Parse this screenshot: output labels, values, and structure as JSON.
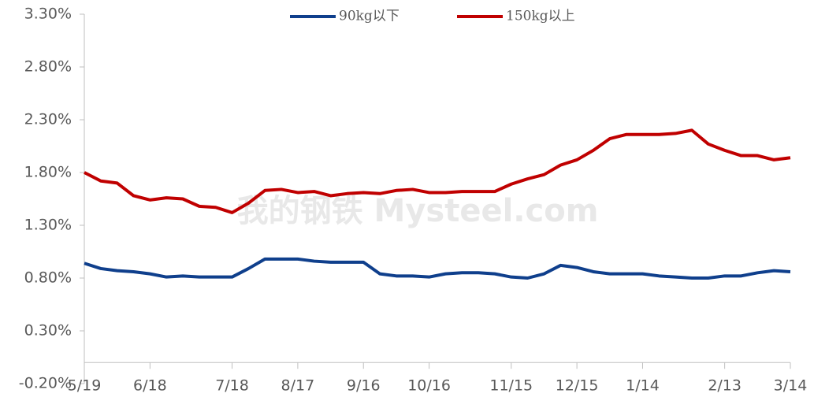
{
  "chart_data": {
    "type": "line",
    "watermark": "我的钢铁 Mysteel.com",
    "categories": [
      "5/19",
      null,
      null,
      null,
      "6/18",
      null,
      null,
      null,
      null,
      "7/18",
      null,
      null,
      null,
      "8/17",
      null,
      null,
      null,
      "9/16",
      null,
      null,
      null,
      "10/16",
      null,
      null,
      null,
      null,
      "11/15",
      null,
      null,
      null,
      "12/15",
      null,
      null,
      null,
      "1/14",
      null,
      null,
      null,
      null,
      "2/13",
      null,
      null,
      null,
      "3/14"
    ],
    "series": [
      {
        "name": "90kg以下",
        "color": "#0f3f8c",
        "values": [
          0.94,
          0.89,
          0.87,
          0.86,
          0.84,
          0.81,
          0.82,
          0.81,
          0.81,
          0.81,
          0.89,
          0.98,
          0.98,
          0.98,
          0.96,
          0.95,
          0.95,
          0.95,
          0.84,
          0.82,
          0.82,
          0.81,
          0.84,
          0.85,
          0.85,
          0.84,
          0.81,
          0.8,
          0.84,
          0.92,
          0.9,
          0.86,
          0.84,
          0.84,
          0.84,
          0.82,
          0.81,
          0.8,
          0.8,
          0.82,
          0.82,
          0.85,
          0.87,
          0.86
        ]
      },
      {
        "name": "150kg以上",
        "color": "#c00000",
        "values": [
          1.8,
          1.72,
          1.7,
          1.58,
          1.54,
          1.56,
          1.55,
          1.48,
          1.47,
          1.42,
          1.51,
          1.63,
          1.64,
          1.61,
          1.62,
          1.58,
          1.6,
          1.61,
          1.6,
          1.63,
          1.64,
          1.61,
          1.61,
          1.62,
          1.62,
          1.62,
          1.69,
          1.74,
          1.78,
          1.87,
          1.92,
          2.01,
          2.12,
          2.16,
          2.16,
          2.16,
          2.17,
          2.2,
          2.07,
          2.01,
          1.96,
          1.96,
          1.92,
          1.94
        ]
      }
    ],
    "ylim": [
      -0.2,
      3.3
    ],
    "yticks": [
      {
        "value": -0.2,
        "label": "-0.20%"
      },
      {
        "value": 0.3,
        "label": "0.30%"
      },
      {
        "value": 0.8,
        "label": "0.80%"
      },
      {
        "value": 1.3,
        "label": "1.30%"
      },
      {
        "value": 1.8,
        "label": "1.80%"
      },
      {
        "value": 2.3,
        "label": "2.30%"
      },
      {
        "value": 2.8,
        "label": "2.80%"
      },
      {
        "value": 3.3,
        "label": "3.30%"
      }
    ],
    "legend": "top"
  }
}
